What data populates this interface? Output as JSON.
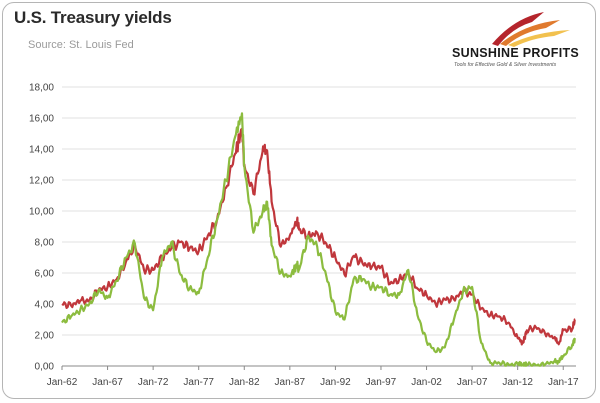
{
  "header": {
    "title": "U.S. Treasury yields",
    "subtitle": "Source: St. Louis Fed"
  },
  "logo": {
    "name": "SUNSHINE PROFITS",
    "tagline": "Tools for Effective Gold & Silver Investments"
  },
  "chart_data": {
    "type": "line",
    "title": "U.S. Treasury yields",
    "xlabel": "",
    "ylabel": "",
    "ylim": [
      0,
      18
    ],
    "xlim": [
      1962,
      2018.4
    ],
    "y_ticks": [
      "0,00",
      "2,00",
      "4,00",
      "6,00",
      "8,00",
      "10,00",
      "12,00",
      "14,00",
      "16,00",
      "18,00"
    ],
    "x_ticks": [
      "Jan-62",
      "Jan-67",
      "Jan-72",
      "Jan-77",
      "Jan-82",
      "Jan-87",
      "Jan-92",
      "Jan-97",
      "Jan-02",
      "Jan-07",
      "Jan-12",
      "Jan-17"
    ],
    "grid": "horizontal",
    "series": [
      {
        "color": "#c0373c",
        "x": [
          1962,
          1963,
          1964,
          1965,
          1966,
          1967,
          1968,
          1969,
          1970,
          1971,
          1972,
          1973,
          1974,
          1975,
          1976,
          1977,
          1978,
          1979,
          1980,
          1981,
          1981.75,
          1982,
          1983,
          1984,
          1984.5,
          1985,
          1986,
          1987,
          1987.8,
          1988,
          1989,
          1990,
          1991,
          1992,
          1993,
          1994,
          1995,
          1996,
          1997,
          1998,
          1999,
          2000,
          2001,
          2002,
          2003,
          2004,
          2005,
          2006,
          2007,
          2008,
          2009,
          2010,
          2011,
          2012,
          2012.6,
          2013,
          2014,
          2015,
          2016,
          2016.5,
          2017,
          2018,
          2018.3
        ],
        "y": [
          4.0,
          3.9,
          4.2,
          4.2,
          4.9,
          5.1,
          5.6,
          6.7,
          7.8,
          6.2,
          6.2,
          7.0,
          7.6,
          8.0,
          7.6,
          7.4,
          8.4,
          9.4,
          11.5,
          13.7,
          15.3,
          13.0,
          11.1,
          13.8,
          13.9,
          10.6,
          7.7,
          8.4,
          9.4,
          8.8,
          8.4,
          8.6,
          7.9,
          7.0,
          5.9,
          7.1,
          6.6,
          6.4,
          6.4,
          5.3,
          5.6,
          6.0,
          5.0,
          4.6,
          4.0,
          4.3,
          4.3,
          4.8,
          4.6,
          3.7,
          3.3,
          3.2,
          2.8,
          1.8,
          1.5,
          2.3,
          2.5,
          2.1,
          1.8,
          1.4,
          2.3,
          2.4,
          3.0
        ]
      },
      {
        "color": "#8cbc3f",
        "x": [
          1962,
          1963,
          1964,
          1965,
          1966,
          1967,
          1968,
          1969,
          1970,
          1971,
          1972,
          1973,
          1974,
          1975,
          1976,
          1977,
          1978,
          1979,
          1980,
          1981,
          1981.75,
          1982,
          1983,
          1984,
          1984.5,
          1985,
          1986,
          1987,
          1987.8,
          1988,
          1989,
          1990,
          1991,
          1992,
          1993,
          1994,
          1995,
          1996,
          1997,
          1998,
          1999,
          2000,
          2001,
          2002,
          2003,
          2004,
          2005,
          2006,
          2007,
          2008,
          2009,
          2010,
          2011,
          2012,
          2012.6,
          2013,
          2014,
          2015,
          2016,
          2016.5,
          2017,
          2018,
          2018.3
        ],
        "y": [
          2.8,
          3.2,
          3.6,
          4.0,
          4.9,
          4.4,
          5.5,
          7.0,
          7.9,
          4.4,
          3.6,
          7.0,
          8.0,
          5.9,
          5.0,
          4.7,
          7.0,
          9.4,
          12.0,
          14.8,
          16.3,
          12.9,
          8.6,
          9.9,
          10.6,
          7.8,
          6.0,
          5.8,
          6.5,
          6.2,
          8.4,
          7.7,
          5.8,
          3.5,
          3.0,
          5.6,
          5.6,
          5.1,
          5.1,
          4.6,
          4.6,
          6.2,
          3.3,
          1.6,
          0.9,
          1.2,
          3.0,
          4.8,
          5.1,
          1.5,
          0.2,
          0.2,
          0.1,
          0.1,
          0.1,
          0.1,
          0.04,
          0.1,
          0.3,
          0.3,
          0.6,
          1.4,
          1.8
        ]
      }
    ]
  }
}
